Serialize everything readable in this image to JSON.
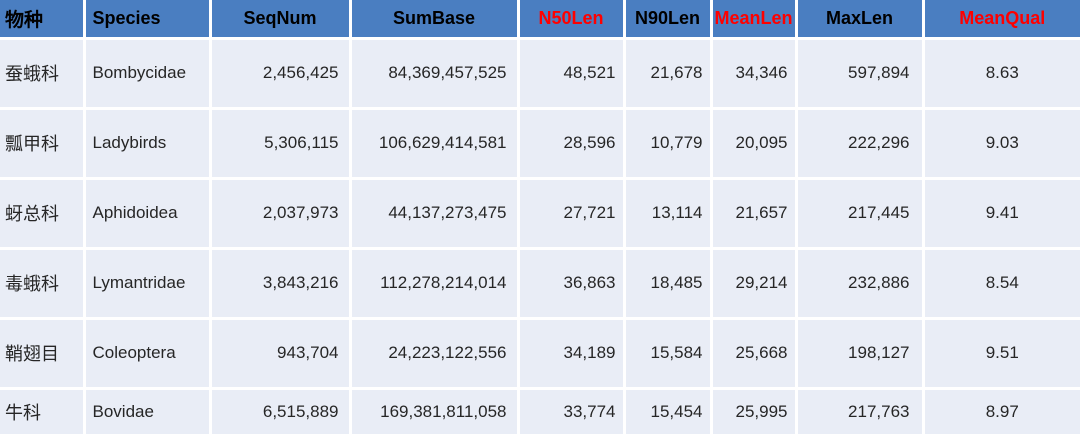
{
  "colors": {
    "header_bg": "#4A7EC1",
    "row_bg": "#E9EDF6",
    "grid_line": "#FFFFFF",
    "header_text": "#000000",
    "header_highlight_text": "#FF0000",
    "body_text": "#262626"
  },
  "table": {
    "headers": [
      {
        "label": "物种",
        "highlight": false
      },
      {
        "label": "Species",
        "highlight": false
      },
      {
        "label": "SeqNum",
        "highlight": false
      },
      {
        "label": "SumBase",
        "highlight": false
      },
      {
        "label": "N50Len",
        "highlight": true
      },
      {
        "label": "N90Len",
        "highlight": false
      },
      {
        "label": "MeanLen",
        "highlight": true
      },
      {
        "label": "MaxLen",
        "highlight": false
      },
      {
        "label": "MeanQual",
        "highlight": true
      }
    ],
    "rows": [
      [
        "蚕蛾科",
        "Bombycidae",
        "2,456,425",
        "84,369,457,525",
        "48,521",
        "21,678",
        "34,346",
        "597,894",
        "8.63"
      ],
      [
        "瓢甲科",
        "Ladybirds",
        "5,306,115",
        "106,629,414,581",
        "28,596",
        "10,779",
        "20,095",
        "222,296",
        "9.03"
      ],
      [
        "蚜总科",
        "Aphidoidea",
        "2,037,973",
        "44,137,273,475",
        "27,721",
        "13,114",
        "21,657",
        "217,445",
        "9.41"
      ],
      [
        "毒蛾科",
        "Lymantridae",
        "3,843,216",
        "112,278,214,014",
        "36,863",
        "18,485",
        "29,214",
        "232,886",
        "8.54"
      ],
      [
        "鞘翅目",
        "Coleoptera",
        "943,704",
        "24,223,122,556",
        "34,189",
        "15,584",
        "25,668",
        "198,127",
        "9.51"
      ],
      [
        "牛科",
        "Bovidae",
        "6,515,889",
        "169,381,811,058",
        "33,774",
        "15,454",
        "25,995",
        "217,763",
        "8.97"
      ]
    ]
  },
  "chart_data": {
    "type": "table",
    "title": "",
    "columns": [
      "物种",
      "Species",
      "SeqNum",
      "SumBase",
      "N50Len",
      "N90Len",
      "MeanLen",
      "MaxLen",
      "MeanQual"
    ],
    "rows": [
      {
        "物种": "蚕蛾科",
        "Species": "Bombycidae",
        "SeqNum": 2456425,
        "SumBase": 84369457525,
        "N50Len": 48521,
        "N90Len": 21678,
        "MeanLen": 34346,
        "MaxLen": 597894,
        "MeanQual": 8.63
      },
      {
        "物种": "瓢甲科",
        "Species": "Ladybirds",
        "SeqNum": 5306115,
        "SumBase": 106629414581,
        "N50Len": 28596,
        "N90Len": 10779,
        "MeanLen": 20095,
        "MaxLen": 222296,
        "MeanQual": 9.03
      },
      {
        "物种": "蚜总科",
        "Species": "Aphidoidea",
        "SeqNum": 2037973,
        "SumBase": 44137273475,
        "N50Len": 27721,
        "N90Len": 13114,
        "MeanLen": 21657,
        "MaxLen": 217445,
        "MeanQual": 9.41
      },
      {
        "物种": "毒蛾科",
        "Species": "Lymantridae",
        "SeqNum": 3843216,
        "SumBase": 112278214014,
        "N50Len": 36863,
        "N90Len": 18485,
        "MeanLen": 29214,
        "MaxLen": 232886,
        "MeanQual": 8.54
      },
      {
        "物种": "鞘翅目",
        "Species": "Coleoptera",
        "SeqNum": 943704,
        "SumBase": 24223122556,
        "N50Len": 34189,
        "N90Len": 15584,
        "MeanLen": 25668,
        "MaxLen": 198127,
        "MeanQual": 9.51
      },
      {
        "物种": "牛科",
        "Species": "Bovidae",
        "SeqNum": 6515889,
        "SumBase": 169381811058,
        "N50Len": 33774,
        "N90Len": 15454,
        "MeanLen": 25995,
        "MaxLen": 217763,
        "MeanQual": 8.97
      }
    ]
  }
}
